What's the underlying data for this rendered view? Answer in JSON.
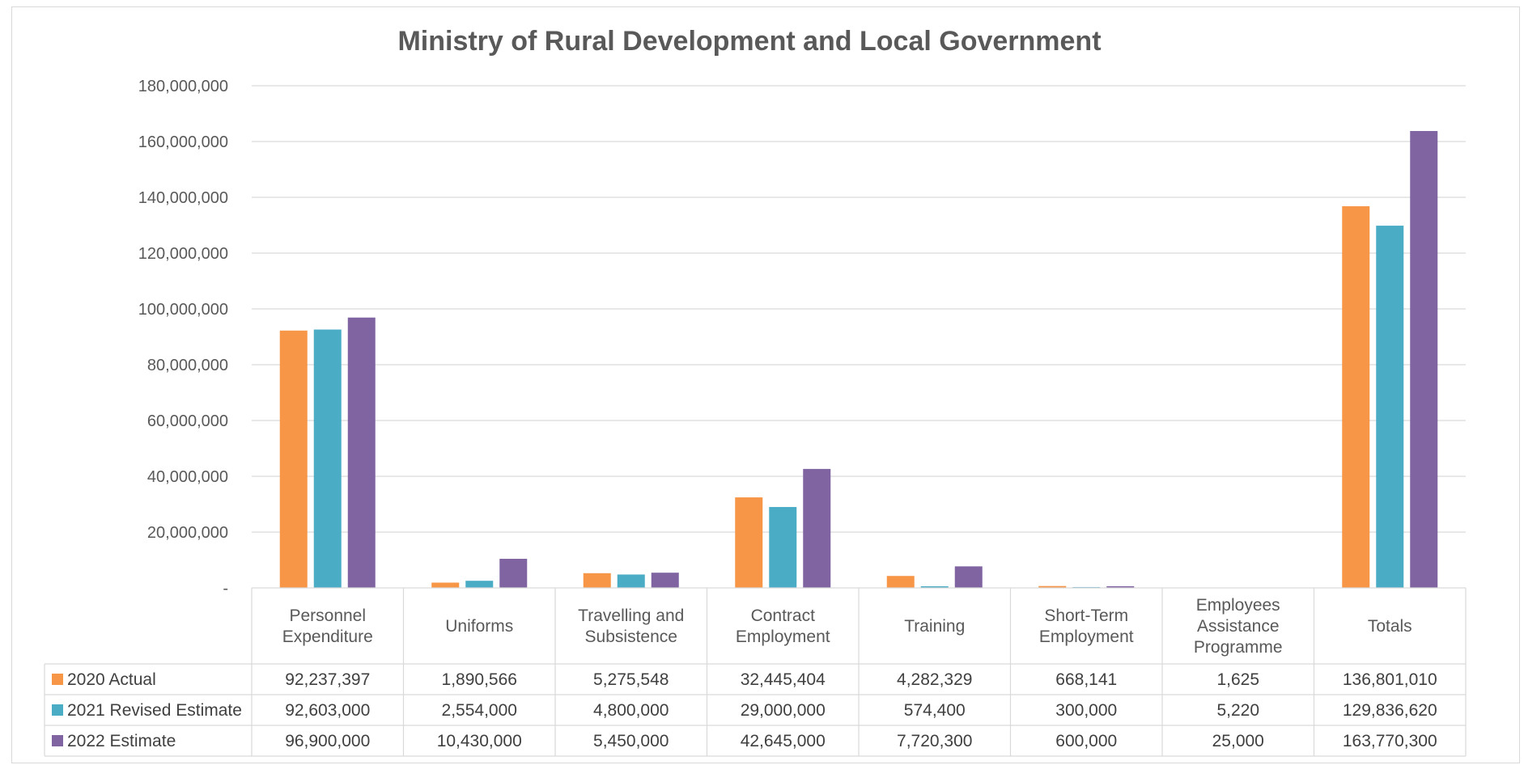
{
  "chart_data": {
    "type": "bar",
    "title": "Ministry of Rural Development and Local Government",
    "categories": [
      [
        "Personnel",
        "Expenditure"
      ],
      [
        "Uniforms"
      ],
      [
        "Travelling and",
        "Subsistence"
      ],
      [
        "Contract",
        "Employment"
      ],
      [
        "Training"
      ],
      [
        "Short-Term",
        "Employment"
      ],
      [
        "Employees",
        "Assistance",
        "Programme"
      ],
      [
        "Totals"
      ]
    ],
    "series": [
      {
        "name": "2020 Actual",
        "color": "#F79646",
        "values": [
          92237397,
          1890566,
          5275548,
          32445404,
          4282329,
          668141,
          1625,
          136801010
        ],
        "labels": [
          "92,237,397",
          "1,890,566",
          "5,275,548",
          "32,445,404",
          "4,282,329",
          "668,141",
          "1,625",
          "136,801,010"
        ]
      },
      {
        "name": "2021 Revised Estimate",
        "color": "#4BACC6",
        "values": [
          92603000,
          2554000,
          4800000,
          29000000,
          574400,
          300000,
          5220,
          129836620
        ],
        "labels": [
          "92,603,000",
          "2,554,000",
          "4,800,000",
          "29,000,000",
          "574,400",
          "300,000",
          "5,220",
          "129,836,620"
        ]
      },
      {
        "name": "2022 Estimate",
        "color": "#8064A2",
        "values": [
          96900000,
          10430000,
          5450000,
          42645000,
          7720300,
          600000,
          25000,
          163770300
        ],
        "labels": [
          "96,900,000",
          "10,430,000",
          "5,450,000",
          "42,645,000",
          "7,720,300",
          "600,000",
          "25,000",
          "163,770,300"
        ]
      }
    ],
    "ylim": [
      0,
      180000000
    ],
    "yticks": [
      0,
      20000000,
      40000000,
      60000000,
      80000000,
      100000000,
      120000000,
      140000000,
      160000000,
      180000000
    ],
    "ytick_labels": [
      "-",
      "20,000,000",
      "40,000,000",
      "60,000,000",
      "80,000,000",
      "100,000,000",
      "120,000,000",
      "140,000,000",
      "160,000,000",
      "180,000,000"
    ],
    "grid": true,
    "legend": "data-table",
    "gridline_color": "#d9d9d9"
  }
}
